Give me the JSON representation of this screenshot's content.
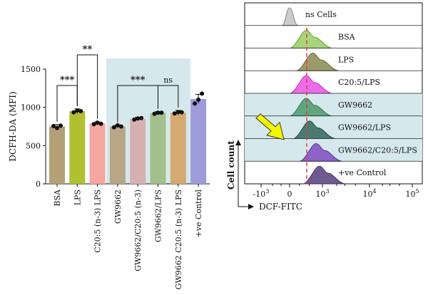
{
  "chart_data": [
    {
      "type": "bar",
      "ylabel": "DCFH-DA (MFI)",
      "ylim": [
        0,
        1500
      ],
      "yticks": [
        0,
        500,
        1000,
        1500
      ],
      "categories": [
        "BSA",
        "LPS",
        "C20:5 (n-3) LPS",
        "GW9662",
        "GW9662/C20:5 (n-3)",
        "GW9662/LPS",
        "GW9662 C20:5 (n-3) LPS",
        "+ve Control"
      ],
      "values": [
        750,
        950,
        790,
        750,
        850,
        925,
        930,
        1110
      ],
      "errors": [
        25,
        30,
        20,
        15,
        20,
        20,
        30,
        60
      ],
      "points": [
        [
          755,
          730,
          760
        ],
        [
          935,
          960,
          950
        ],
        [
          780,
          800,
          785
        ],
        [
          740,
          765,
          750
        ],
        [
          840,
          855,
          860
        ],
        [
          915,
          930,
          930
        ],
        [
          920,
          940,
          935
        ],
        [
          1050,
          1100,
          1180
        ]
      ],
      "colors": [
        "#b3a077",
        "#b1c030",
        "#f4a6a0",
        "#b8a687",
        "#d6b0b0",
        "#a3bf8c",
        "#d4aa72",
        "#9d9bd8"
      ],
      "significance": [
        {
          "from": 0,
          "to": 1,
          "label": "***"
        },
        {
          "from": 1,
          "to": 2,
          "label": "**"
        },
        {
          "from": 3,
          "to": 5,
          "label": "***"
        },
        {
          "from": 5,
          "to": 6,
          "label": "ns"
        }
      ],
      "shaded_group": [
        3,
        6
      ]
    },
    {
      "type": "area",
      "xlabel": "DCF-FITC",
      "ylabel": "Cell count",
      "xticks": [
        "-10^3",
        "0",
        "10^3",
        "10^4",
        "10^5"
      ],
      "xtick_values": [
        -1000,
        0,
        1000,
        10000,
        100000
      ],
      "reference_line": "dashed vertical line near peak position",
      "series": [
        {
          "name": "ns Cells",
          "peak": 0,
          "color": "#cccccc",
          "stroke": "#888888",
          "shaded": false
        },
        {
          "name": "BSA",
          "peak": 500,
          "color": "#a8d47a",
          "stroke": "#5ea02c",
          "shaded": false
        },
        {
          "name": "LPS",
          "peak": 700,
          "color": "#9c9a68",
          "stroke": "#6b6a3a",
          "shaded": false
        },
        {
          "name": "C20:5/LPS",
          "peak": 500,
          "color": "#ea6ce8",
          "stroke": "#d020c8",
          "shaded": false
        },
        {
          "name": "GW9662",
          "peak": 500,
          "color": "#5fa67f",
          "stroke": "#2e7a52",
          "shaded": true
        },
        {
          "name": "GW9662/LPS",
          "peak": 600,
          "color": "#4a7a70",
          "stroke": "#234f47",
          "shaded": true
        },
        {
          "name": "GW9662/C20:5/LPS",
          "peak": 800,
          "color": "#8e63c8",
          "stroke": "#5a2f99",
          "shaded": true
        },
        {
          "name": "+ve Control",
          "peak": 900,
          "color": "#6e5a8e",
          "stroke": "#3f2f5c",
          "shaded": false
        }
      ]
    }
  ],
  "colors": {
    "shade": "#d5e8ec",
    "dashed_line": "#e03a3a",
    "arrow": "#f5f500"
  }
}
